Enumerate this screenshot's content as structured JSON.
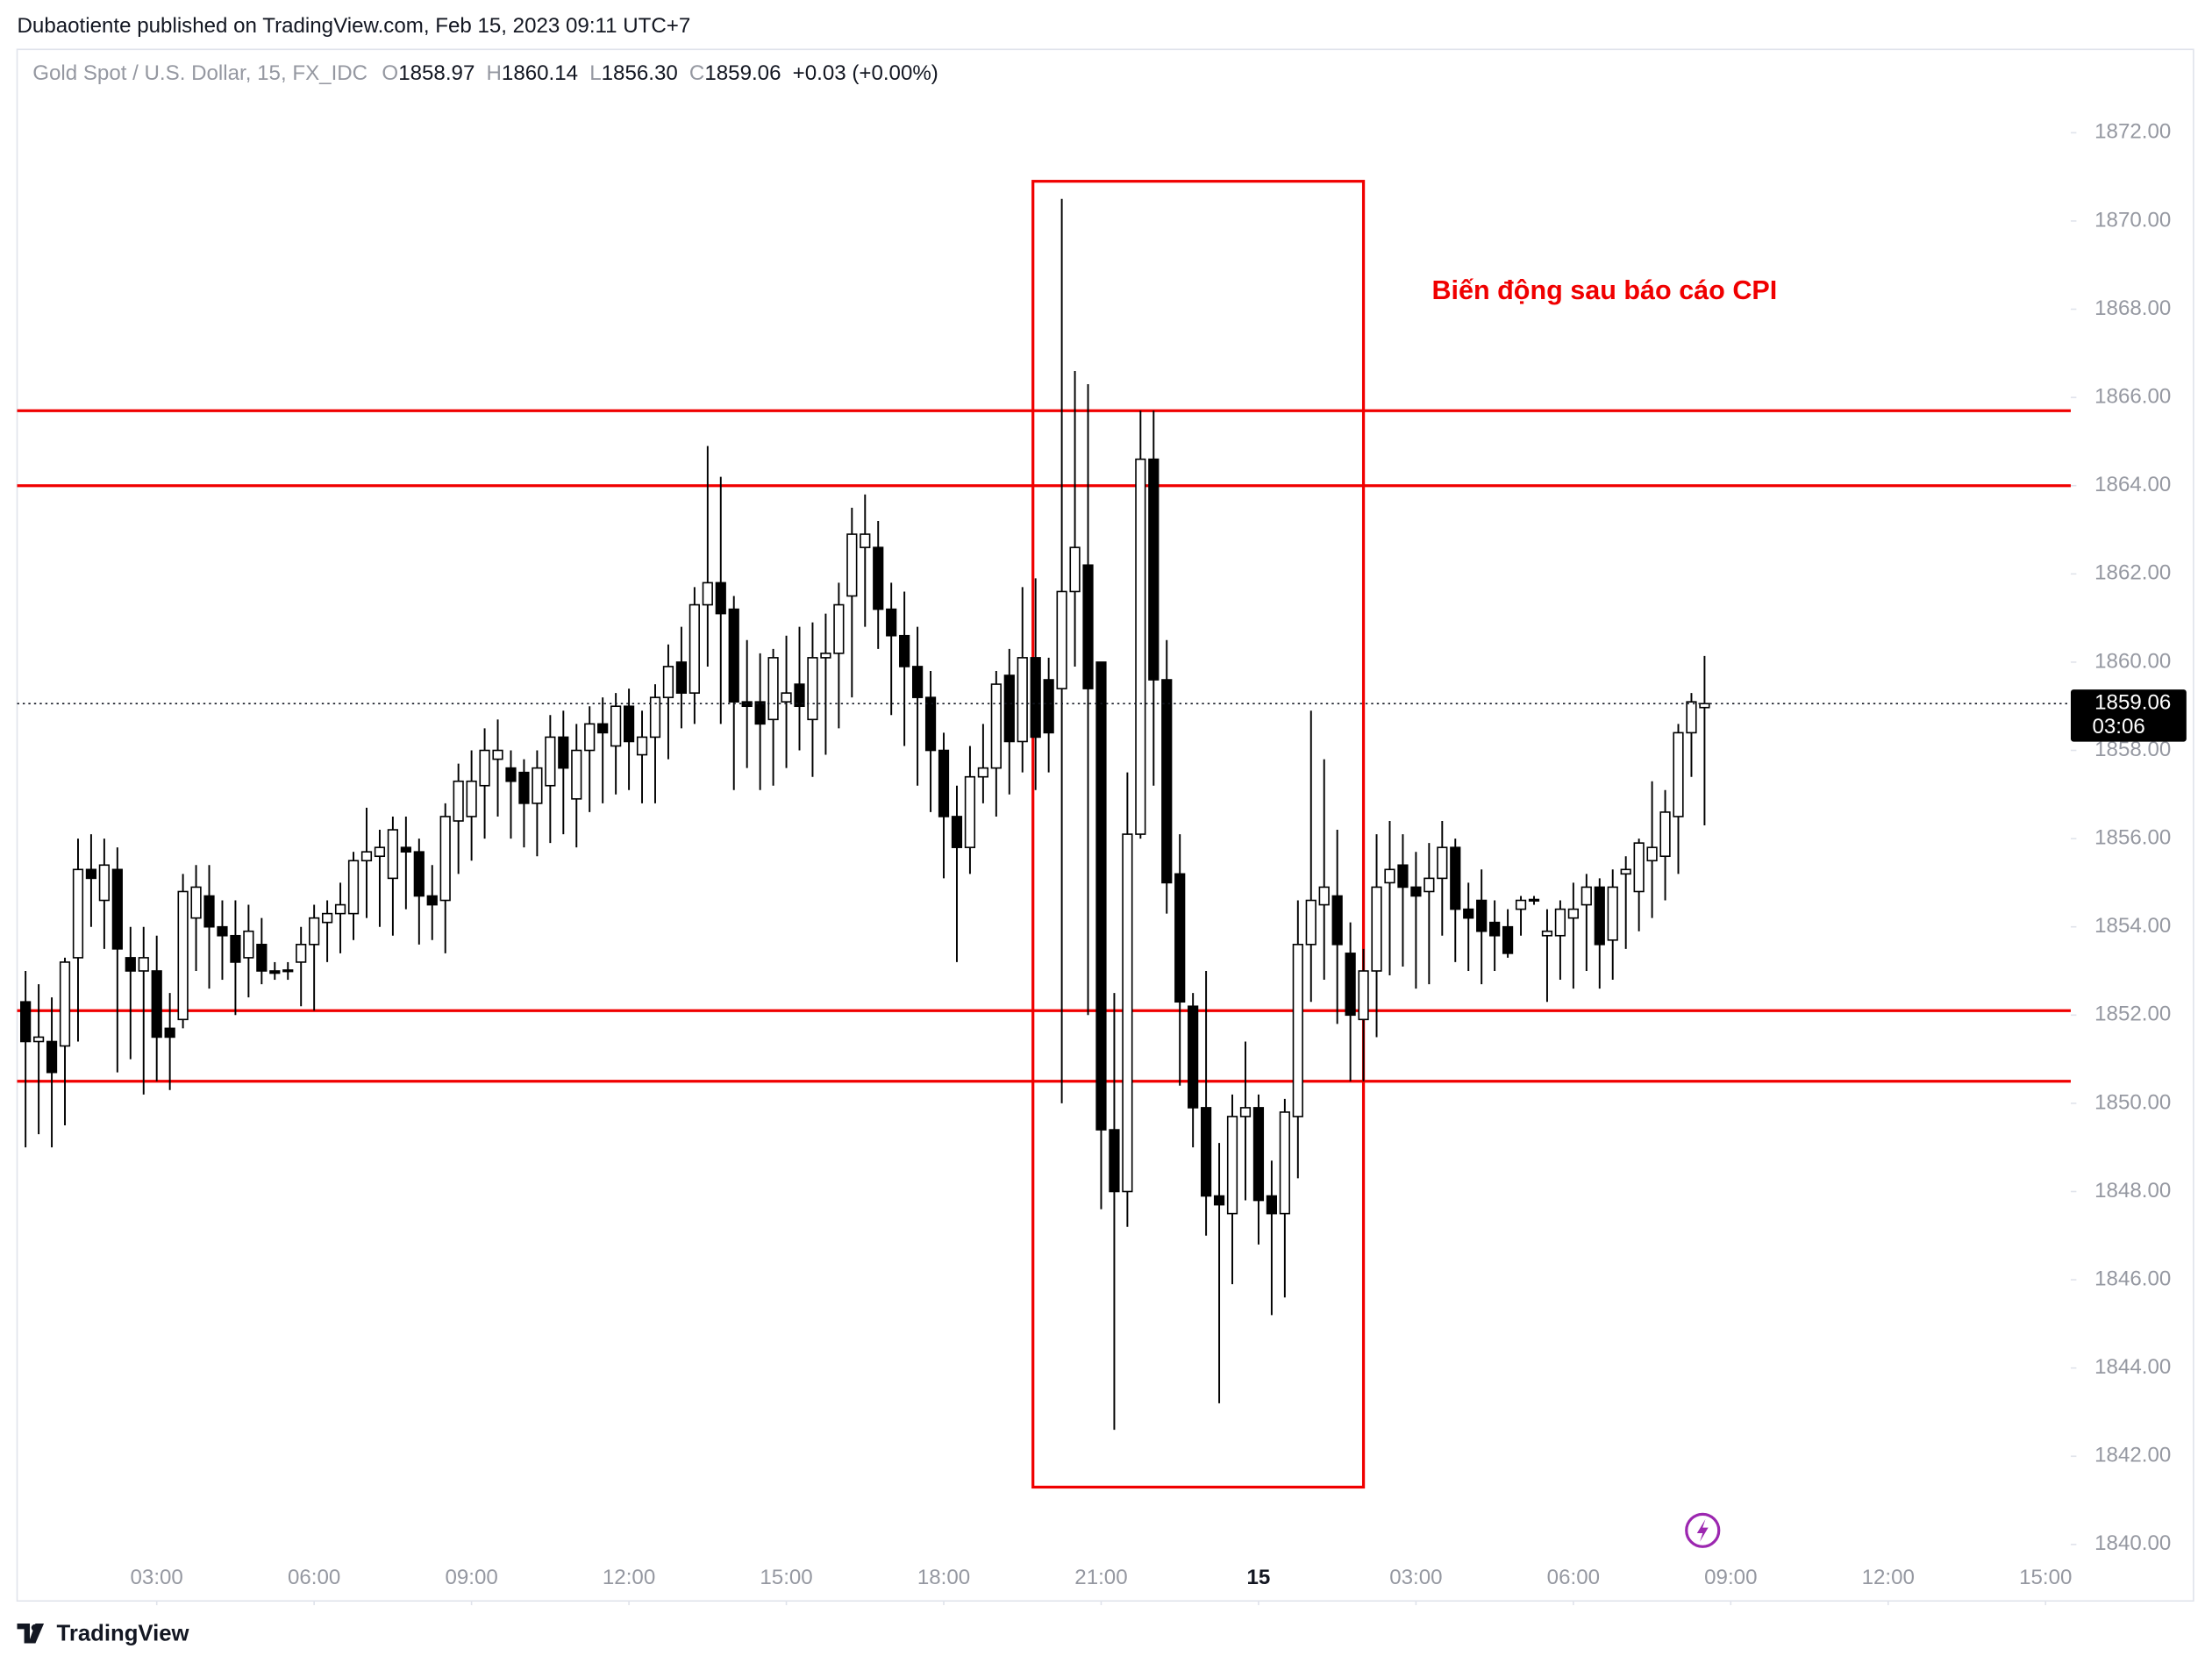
{
  "chart_data": {
    "type": "candlestick",
    "publisher": "Dubaotiente published on TradingView.com, Feb 15, 2023 09:11 UTC+7",
    "title": "Gold Spot / U.S. Dollar, 15, FX_IDC",
    "ohlc_legend": [
      {
        "key": "O",
        "value": "1858.97"
      },
      {
        "key": "H",
        "value": "1860.14"
      },
      {
        "key": "L",
        "value": "1856.30"
      },
      {
        "key": "C",
        "value": "1859.06"
      }
    ],
    "change": "+0.03 (+0.00%)",
    "brand": "TradingView",
    "annotation": "Biến động sau báo cáo CPI",
    "last_price": 1859.06,
    "countdown": "03:06",
    "levels": [
      1865.7,
      1864.0,
      1852.1,
      1850.5
    ],
    "levels_color": "#f00000",
    "box": {
      "x": [
        19.7,
        26.0
      ],
      "y": [
        1841.3,
        1870.9
      ]
    },
    "up_color": "#ffffff",
    "down_color": "#000000",
    "x": [
      0.5,
      0.75,
      1,
      1.25,
      1.5,
      1.75,
      2,
      2.25,
      2.5,
      2.75,
      3,
      3.25,
      3.5,
      3.75,
      4,
      4.25,
      4.5,
      4.75,
      5,
      5.25,
      5.5,
      5.75,
      6,
      6.25,
      6.5,
      6.75,
      7,
      7.25,
      7.5,
      7.75,
      8,
      8.25,
      8.5,
      8.75,
      9,
      9.25,
      9.5,
      9.75,
      10,
      10.25,
      10.5,
      10.75,
      11,
      11.25,
      11.5,
      11.75,
      12,
      12.25,
      12.5,
      12.75,
      13,
      13.25,
      13.5,
      13.75,
      14,
      14.25,
      14.5,
      14.75,
      15,
      15.25,
      15.5,
      15.75,
      16,
      16.25,
      16.5,
      16.75,
      17,
      17.25,
      17.5,
      17.75,
      18,
      18.25,
      18.5,
      18.75,
      19,
      19.25,
      19.5,
      19.75,
      20,
      20.25,
      20.5,
      20.75,
      21,
      21.25,
      21.5,
      21.75,
      22,
      22.25,
      22.5,
      22.75,
      23,
      23.25,
      23.5,
      23.75,
      24,
      24.25,
      24.5,
      24.75,
      25,
      25.25,
      25.5,
      25.75,
      26,
      26.25,
      26.5,
      26.75,
      27,
      27.25,
      27.5,
      27.75,
      28,
      28.25,
      28.5,
      28.75,
      29,
      29.25,
      29.5,
      29.75,
      30,
      30.25,
      30.5,
      30.75,
      31,
      31.25,
      31.5,
      31.75,
      32,
      32.25,
      32.5
    ],
    "open": [
      1852.3,
      1851.4,
      1851.4,
      1851.3,
      1853.3,
      1855.3,
      1854.6,
      1855.3,
      1853.3,
      1853,
      1853,
      1851.7,
      1851.9,
      1854.2,
      1854.7,
      1854,
      1853.8,
      1853.3,
      1853.6,
      1853,
      1853,
      1853.2,
      1853.6,
      1854.1,
      1854.3,
      1854.3,
      1855.5,
      1855.6,
      1855.1,
      1855.8,
      1855.7,
      1854.7,
      1854.6,
      1856.4,
      1856.5,
      1857.2,
      1857.8,
      1857.6,
      1857.5,
      1856.8,
      1857.2,
      1858.3,
      1856.9,
      1858,
      1858.6,
      1858.1,
      1859,
      1857.9,
      1858.3,
      1859.2,
      1860,
      1859.3,
      1861.3,
      1861.8,
      1861.2,
      1859.1,
      1859.1,
      1858.7,
      1859.1,
      1859.5,
      1858.7,
      1860.1,
      1860.2,
      1861.5,
      1862.6,
      1862.6,
      1861.2,
      1860.6,
      1859.9,
      1859.2,
      1858,
      1856.5,
      1855.8,
      1857.4,
      1857.6,
      1859.7,
      1858.2,
      1860.1,
      1859.6,
      1859.4,
      1861.6,
      1862.2,
      1860,
      1849.4,
      1848,
      1856.1,
      1864.6,
      1859.6,
      1855.2,
      1852.2,
      1849.9,
      1847.9,
      1847.5,
      1849.7,
      1849.9,
      1847.9,
      1847.5,
      1849.7,
      1853.6,
      1854.5,
      1854.7,
      1853.4,
      1851.9,
      1853,
      1855,
      1855.4,
      1854.9,
      1854.8,
      1855.1,
      1855.8,
      1854.4,
      1854.6,
      1854.1,
      1854,
      1854.4,
      1854.6,
      1853.8,
      1853.8,
      1854.2,
      1854.5,
      1854.9,
      1853.7,
      1855.2,
      1854.8,
      1855.5,
      1855.6,
      1856.5,
      1858.4,
      1858.97
    ],
    "high": [
      1853,
      1852.7,
      1852.4,
      1853.3,
      1856,
      1856.1,
      1856,
      1855.8,
      1854,
      1854,
      1853.8,
      1852.5,
      1855.2,
      1855.4,
      1855.4,
      1854.6,
      1854.6,
      1854.5,
      1854.2,
      1853.2,
      1853.2,
      1854,
      1854.5,
      1854.6,
      1855,
      1855.7,
      1856.7,
      1856.2,
      1856.5,
      1856.5,
      1856,
      1855.4,
      1856.8,
      1857.7,
      1858,
      1858.5,
      1858.7,
      1858,
      1857.8,
      1858,
      1858.8,
      1858.9,
      1858.6,
      1859,
      1859.2,
      1859.3,
      1859.4,
      1858.9,
      1859.5,
      1860.4,
      1860.8,
      1861.7,
      1864.9,
      1864.2,
      1861.5,
      1860.5,
      1860.2,
      1860.3,
      1860.6,
      1860.8,
      1860.9,
      1861.1,
      1861.8,
      1863.5,
      1863.8,
      1863.2,
      1861.8,
      1861.6,
      1860.8,
      1859.8,
      1858.4,
      1857.2,
      1858.1,
      1858.6,
      1859.8,
      1860.3,
      1861.7,
      1861.9,
      1860.1,
      1870.5,
      1866.6,
      1866.3,
      1860,
      1852.5,
      1857.5,
      1865.7,
      1865.7,
      1860.5,
      1856.1,
      1852.5,
      1853,
      1849.1,
      1850.2,
      1851.4,
      1850.2,
      1848.7,
      1850.1,
      1854.6,
      1858.9,
      1857.8,
      1856.2,
      1854.1,
      1853.5,
      1856.1,
      1856.4,
      1856.1,
      1855.7,
      1855.9,
      1856.4,
      1856,
      1855,
      1855.3,
      1854.6,
      1854.4,
      1854.7,
      1854.7,
      1854.4,
      1854.6,
      1855,
      1855.2,
      1855.1,
      1855.3,
      1855.6,
      1856,
      1857.3,
      1857.1,
      1858.6,
      1859.3,
      1860.14
    ],
    "low": [
      1849,
      1849.3,
      1849,
      1849.5,
      1851.4,
      1854,
      1853.5,
      1850.7,
      1851,
      1850.2,
      1850.5,
      1850.3,
      1851.7,
      1853,
      1852.6,
      1852.8,
      1852,
      1852.4,
      1852.7,
      1852.8,
      1852.8,
      1852.2,
      1852.1,
      1853.2,
      1853.4,
      1853.7,
      1854.2,
      1854,
      1853.8,
      1854.4,
      1853.6,
      1853.7,
      1853.4,
      1855.2,
      1855.5,
      1856,
      1856.5,
      1856,
      1855.8,
      1855.6,
      1855.9,
      1856.1,
      1855.8,
      1856.6,
      1856.8,
      1857,
      1857.1,
      1856.8,
      1856.8,
      1857.8,
      1858.5,
      1858.6,
      1859.9,
      1858.6,
      1857.1,
      1857.6,
      1857.1,
      1857.2,
      1857.6,
      1858,
      1857.4,
      1857.9,
      1858.5,
      1859.2,
      1860.8,
      1860.3,
      1858.8,
      1858.1,
      1857.2,
      1856.6,
      1855.1,
      1853.2,
      1855.2,
      1856.8,
      1856.5,
      1857,
      1857.5,
      1857.1,
      1857.5,
      1850,
      1859.9,
      1852,
      1847.6,
      1842.6,
      1847.2,
      1856,
      1857.2,
      1854.3,
      1850.4,
      1849,
      1847,
      1843.2,
      1845.9,
      1847.8,
      1846.8,
      1845.2,
      1845.6,
      1848.3,
      1852.3,
      1852.8,
      1851.8,
      1850.5,
      1850.5,
      1851.5,
      1852.9,
      1853.1,
      1852.6,
      1852.7,
      1853.8,
      1853.2,
      1853,
      1852.7,
      1853,
      1853.3,
      1853.8,
      1854.5,
      1852.3,
      1852.8,
      1852.6,
      1853,
      1852.6,
      1852.8,
      1853.5,
      1853.9,
      1854.2,
      1854.6,
      1855.2,
      1857.4,
      1856.3
    ],
    "close": [
      1851.4,
      1851.5,
      1850.7,
      1853.2,
      1855.3,
      1855.1,
      1855.4,
      1853.5,
      1853.0,
      1853.3,
      1851.5,
      1851.5,
      1854.8,
      1854.9,
      1854,
      1853.8,
      1853.2,
      1853.9,
      1853,
      1852.95,
      1853.02,
      1853.6,
      1854.2,
      1854.3,
      1854.5,
      1855.5,
      1855.7,
      1855.8,
      1856.2,
      1855.7,
      1854.7,
      1854.5,
      1856.5,
      1857.3,
      1857.3,
      1858,
      1858,
      1857.3,
      1856.8,
      1857.6,
      1858.3,
      1857.6,
      1858,
      1858.6,
      1858.4,
      1859,
      1858.2,
      1858.3,
      1859.2,
      1859.9,
      1859.3,
      1861.3,
      1861.8,
      1861.1,
      1859.1,
      1859,
      1858.6,
      1860.1,
      1859.3,
      1859,
      1860.1,
      1860.2,
      1861.3,
      1862.9,
      1862.9,
      1861.2,
      1860.6,
      1859.9,
      1859.2,
      1858,
      1856.5,
      1855.8,
      1857.4,
      1857.6,
      1859.5,
      1858.2,
      1860.1,
      1858.3,
      1858.4,
      1861.6,
      1862.6,
      1859.4,
      1849.4,
      1848,
      1856.1,
      1864.6,
      1859.6,
      1855,
      1852.3,
      1849.9,
      1847.9,
      1847.7,
      1849.7,
      1849.9,
      1847.8,
      1847.5,
      1849.8,
      1853.6,
      1854.6,
      1854.9,
      1853.6,
      1852,
      1853,
      1854.9,
      1855.3,
      1854.9,
      1854.7,
      1855.1,
      1855.8,
      1854.4,
      1854.2,
      1853.9,
      1853.8,
      1853.4,
      1854.6,
      1854.62,
      1853.9,
      1854.4,
      1854.4,
      1854.9,
      1853.6,
      1854.9,
      1855.3,
      1855.9,
      1855.8,
      1856.6,
      1858.4,
      1859.1,
      1859.06
    ],
    "xlim": [
      0.339,
      39.48
    ],
    "ylim": [
      1838.72,
      1873.89
    ],
    "xticks": [
      {
        "value": 3,
        "label": "03:00"
      },
      {
        "value": 6,
        "label": "06:00"
      },
      {
        "value": 9,
        "label": "09:00"
      },
      {
        "value": 12,
        "label": "12:00"
      },
      {
        "value": 15,
        "label": "15:00"
      },
      {
        "value": 18,
        "label": "18:00"
      },
      {
        "value": 21,
        "label": "21:00"
      },
      {
        "value": 24,
        "label": "15"
      },
      {
        "value": 27,
        "label": "03:00"
      },
      {
        "value": 30,
        "label": "06:00"
      },
      {
        "value": 33,
        "label": "09:00"
      },
      {
        "value": 36,
        "label": "12:00"
      },
      {
        "value": 39,
        "label": "15:00"
      }
    ],
    "yticks": [
      {
        "value": 1840,
        "label": "1840.00"
      },
      {
        "value": 1842,
        "label": "1842.00"
      },
      {
        "value": 1844,
        "label": "1844.00"
      },
      {
        "value": 1846,
        "label": "1846.00"
      },
      {
        "value": 1848,
        "label": "1848.00"
      },
      {
        "value": 1850,
        "label": "1850.00"
      },
      {
        "value": 1852,
        "label": "1852.00"
      },
      {
        "value": 1854,
        "label": "1854.00"
      },
      {
        "value": 1856,
        "label": "1856.00"
      },
      {
        "value": 1858,
        "label": "1858.00"
      },
      {
        "value": 1860,
        "label": "1860.00"
      },
      {
        "value": 1862,
        "label": "1862.00"
      },
      {
        "value": 1864,
        "label": "1864.00"
      },
      {
        "value": 1866,
        "label": "1866.00"
      },
      {
        "value": 1868,
        "label": "1868.00"
      },
      {
        "value": 1870,
        "label": "1870.00"
      },
      {
        "value": 1872,
        "label": "1872.00"
      }
    ]
  }
}
